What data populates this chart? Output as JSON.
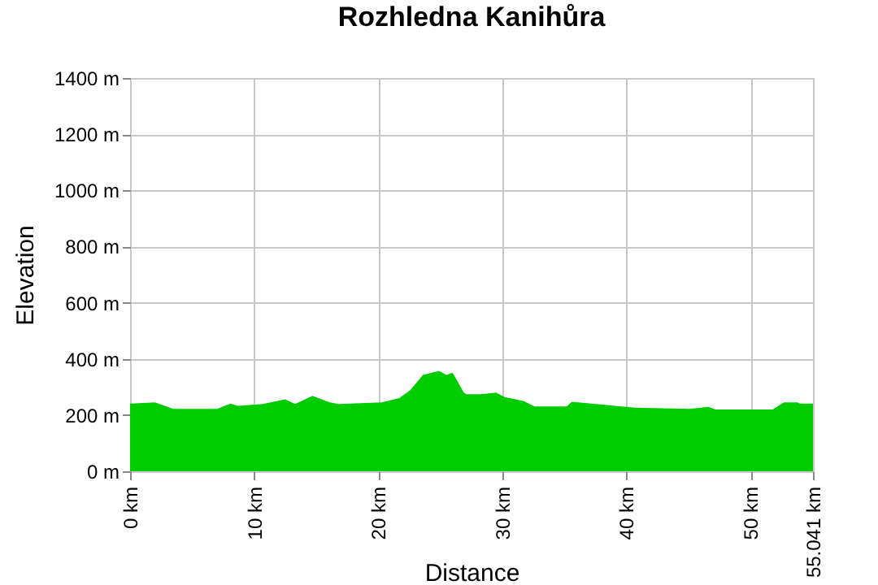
{
  "chart_data": {
    "type": "area",
    "title": "Rozhledna Kanihůra",
    "xlabel": "Distance",
    "ylabel": "Elevation",
    "x": [
      0,
      2.0,
      3.5,
      7.0,
      8.1,
      8.7,
      10.7,
      12.5,
      13.3,
      14.7,
      16.1,
      16.8,
      20.3,
      21.7,
      22.6,
      23.6,
      24.9,
      25.5,
      26.0,
      26.9,
      27.1,
      28.2,
      29.5,
      30.2,
      31.7,
      32.6,
      35.2,
      35.6,
      38.1,
      40.7,
      45.1,
      46.6,
      47.2,
      51.8,
      52.7,
      53.8,
      54.0,
      55.041
    ],
    "series": [
      {
        "color": "#00cc00",
        "values": [
          241,
          245,
          222,
          222,
          241,
          233,
          239,
          256,
          239,
          268,
          245,
          239,
          245,
          260,
          289,
          343,
          357,
          343,
          351,
          280,
          274,
          274,
          280,
          264,
          250,
          231,
          231,
          247,
          237,
          226,
          222,
          229,
          220,
          220,
          245,
          245,
          241,
          241
        ]
      }
    ],
    "xlim": [
      0,
      55.041
    ],
    "ylim": [
      0,
      1400
    ],
    "xticks": [
      {
        "value": 0,
        "label": "0 km"
      },
      {
        "value": 10,
        "label": "10 km"
      },
      {
        "value": 20,
        "label": "20 km"
      },
      {
        "value": 30,
        "label": "30 km"
      },
      {
        "value": 40,
        "label": "40 km"
      },
      {
        "value": 50,
        "label": "50 km"
      },
      {
        "value": 55.041,
        "label": "55.041 km"
      }
    ],
    "yticks": [
      {
        "value": 0,
        "label": "0 m"
      },
      {
        "value": 200,
        "label": "200 m"
      },
      {
        "value": 400,
        "label": "400 m"
      },
      {
        "value": 600,
        "label": "600 m"
      },
      {
        "value": 800,
        "label": "800 m"
      },
      {
        "value": 1000,
        "label": "1000 m"
      },
      {
        "value": 1200,
        "label": "1200 m"
      },
      {
        "value": 1400,
        "label": "1400 m"
      }
    ],
    "grid": true
  }
}
